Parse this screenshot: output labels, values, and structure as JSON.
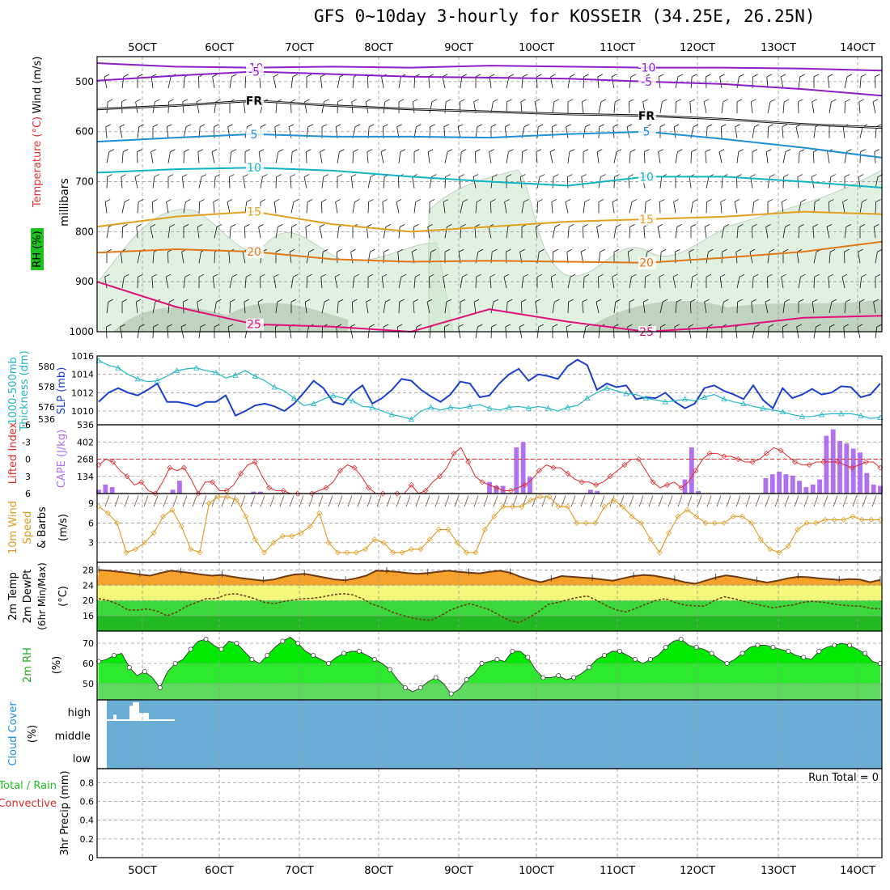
{
  "title": "GFS 0~10day 3-hourly for KOSSEIR (34.25E, 26.25N)",
  "colors": {
    "frame": "#000000",
    "grid": "#9a9a9a",
    "purple": "#8b1fc4",
    "blue": "#1e90d6",
    "cyan": "#10b5c4",
    "orange": "#e0a020",
    "dkorange": "#e07818",
    "magenta": "#e0107a",
    "freezing": "#000000",
    "rh_green": "#c9e6c9",
    "slp": "#1a3fcf",
    "thickness": "#20b6c4",
    "cape": "#b070f0",
    "li": "#dd2b2b",
    "wind10": "#e09a20",
    "barb": "#7b5a40",
    "temp_fill": "#f4a22c",
    "temp_line": "#6e3a12",
    "dew_line": "#6e3a12",
    "band_yellow": "#f4f87a",
    "band_green": "#3ad83a",
    "band_dkgreen": "#22b922",
    "rh2m_fill": "#00ea00",
    "rh2m_fill2": "#52e652",
    "rh2m_fill3": "#7ed07e",
    "cloud_bg": "#6aaed6",
    "cloud_bar": "#ffffff",
    "precip": "#000000"
  },
  "chart_data": [
    {
      "id": "date-axis",
      "type": "axis",
      "tick_labels": [
        "5OCT",
        "6OCT",
        "7OCT",
        "8OCT",
        "9OCT",
        "10OCT",
        "11OCT",
        "12OCT",
        "13OCT",
        "14OCT"
      ],
      "steps": 80
    },
    {
      "id": "upper-air",
      "type": "line",
      "ylabel_parts": [
        "Wind (m/s)",
        "Temperature (°C)",
        "RH (%)"
      ],
      "ylabel_side": "millibars",
      "y_ticks": [
        500,
        600,
        700,
        800,
        900,
        1000
      ],
      "ylim": [
        1000,
        450
      ],
      "isotherms": [
        {
          "label": "-10",
          "color": "purple",
          "x": [
            0,
            8,
            16,
            24,
            32,
            40,
            48,
            56,
            64,
            72,
            80
          ],
          "p": [
            463,
            470,
            472,
            470,
            472,
            468,
            470,
            472,
            472,
            474,
            478
          ]
        },
        {
          "label": "-5",
          "color": "purple",
          "x": [
            0,
            8,
            16,
            24,
            32,
            40,
            48,
            56,
            64,
            72,
            80
          ],
          "p": [
            498,
            488,
            480,
            485,
            490,
            492,
            494,
            500,
            505,
            515,
            528
          ]
        },
        {
          "label": "FR",
          "color": "freezing",
          "x": [
            0,
            8,
            16,
            24,
            32,
            40,
            48,
            56,
            64,
            72,
            80
          ],
          "p": [
            555,
            548,
            538,
            548,
            555,
            560,
            565,
            568,
            575,
            585,
            592
          ]
        },
        {
          "label": "5",
          "color": "blue",
          "x": [
            0,
            8,
            16,
            24,
            32,
            40,
            48,
            56,
            64,
            72,
            80
          ],
          "p": [
            620,
            612,
            605,
            610,
            610,
            612,
            605,
            600,
            615,
            632,
            652
          ]
        },
        {
          "label": "10",
          "color": "cyan",
          "x": [
            0,
            8,
            16,
            24,
            32,
            40,
            48,
            56,
            64,
            72,
            80
          ],
          "p": [
            682,
            675,
            672,
            678,
            690,
            700,
            708,
            690,
            690,
            700,
            712
          ]
        },
        {
          "label": "15",
          "color": "orange",
          "x": [
            0,
            8,
            16,
            24,
            32,
            40,
            48,
            56,
            64,
            72,
            80
          ],
          "p": [
            790,
            770,
            760,
            785,
            800,
            790,
            780,
            775,
            770,
            760,
            765
          ]
        },
        {
          "label": "20",
          "color": "dkorange",
          "x": [
            0,
            8,
            16,
            24,
            32,
            40,
            48,
            56,
            64,
            72,
            80
          ],
          "p": [
            842,
            835,
            840,
            855,
            860,
            858,
            860,
            862,
            852,
            840,
            820
          ]
        },
        {
          "label": "25",
          "color": "magenta",
          "x": [
            0,
            8,
            16,
            24,
            32,
            40,
            48,
            56,
            64,
            72,
            80
          ],
          "p": [
            900,
            950,
            985,
            990,
            1000,
            955,
            980,
            1000,
            990,
            972,
            968
          ]
        }
      ],
      "wind_barbs": {
        "rows": [
          500,
          550,
          600,
          650,
          700,
          750,
          800,
          850,
          900,
          950,
          1000
        ],
        "direction_deg": 315
      }
    },
    {
      "id": "slp-thickness",
      "type": "line",
      "ylabel_left": "1000-500mb Thickness (dm)",
      "ylabel_right": "SLP (mb)",
      "left_ticks": [
        576,
        578,
        580
      ],
      "right_ticks": [
        1010,
        1012,
        1014,
        1016
      ],
      "ylim_slp": [
        1008.5,
        1016
      ],
      "series": [
        {
          "name": "SLP (mb)",
          "color": "slp",
          "values": [
            1011,
            1012,
            1012.5,
            1012,
            1011.7,
            1012.3,
            1013,
            1011,
            1011,
            1010.8,
            1010.5,
            1011,
            1011,
            1011.7,
            1009.5,
            1010,
            1010.6,
            1010.8,
            1010.5,
            1010,
            1010.8,
            1012,
            1013.3,
            1012.5,
            1011,
            1010.7,
            1012,
            1012.8,
            1010.8,
            1011.4,
            1012.3,
            1013.5,
            1013.3,
            1012.3,
            1011.6,
            1011,
            1011.8,
            1013.2,
            1013,
            1011.5,
            1011.7,
            1013,
            1014,
            1014.6,
            1013.3,
            1014,
            1013.8,
            1013.5,
            1014.9,
            1015.6,
            1015,
            1012.3,
            1013,
            1012.6,
            1012.8,
            1011.3,
            1011.5,
            1011.4,
            1012,
            1011,
            1010.3,
            1010.8,
            1012.5,
            1012.8,
            1012.2,
            1011.8,
            1011.3,
            1012.8,
            1011.2,
            1010.3,
            1012.5,
            1011.4,
            1011.8,
            1012.4,
            1011.8,
            1012,
            1012.7,
            1012.6,
            1011.5,
            1011.8,
            1013
          ]
        },
        {
          "name": "Thickness (dm)",
          "color": "thickness",
          "values": [
            1015.5,
            1015,
            1014.7,
            1014,
            1013.5,
            1013.2,
            1013.3,
            1013.8,
            1014.4,
            1014.6,
            1014.7,
            1014.4,
            1014.2,
            1013.6,
            1013.9,
            1014.4,
            1013.8,
            1013.3,
            1012.6,
            1012.2,
            1011.4,
            1010.6,
            1010.8,
            1011.3,
            1011.7,
            1011.4,
            1011.1,
            1010.5,
            1010.4,
            1010,
            1009.6,
            1009.4,
            1009.1,
            1010,
            1010.4,
            1010.1,
            1010.4,
            1010.3,
            1010.5,
            1010.7,
            1010.3,
            1010.1,
            1010.4,
            1010.5,
            1010.3,
            1010.5,
            1010.3,
            1010,
            1010.4,
            1010.6,
            1011.4,
            1012,
            1012.5,
            1012.2,
            1011.9,
            1011.8,
            1011.4,
            1011.2,
            1011,
            1011.1,
            1011.3,
            1011.1,
            1011.5,
            1011.8,
            1011.3,
            1011,
            1010.8,
            1010.5,
            1010.3,
            1010.1,
            1009.9,
            1009.6,
            1009.4,
            1009.4,
            1009.6,
            1009.7,
            1009.7,
            1009.7,
            1009.5,
            1009.2,
            1009.3
          ]
        }
      ]
    },
    {
      "id": "cape-li",
      "type": "bar",
      "ylabel_left": "Lifted Index",
      "ylabel_right": "CAPE (J/kg)",
      "li_ticks": [
        "-6",
        "-3",
        "0",
        "3",
        "6"
      ],
      "cape_ticks": [
        536,
        402,
        268,
        134
      ],
      "cape_max": 536,
      "cape_values": [
        30,
        70,
        50,
        0,
        0,
        0,
        0,
        0,
        0,
        0,
        0,
        30,
        100,
        0,
        0,
        0,
        0,
        0,
        0,
        0,
        0,
        0,
        0,
        15,
        15,
        0,
        0,
        0,
        0,
        0,
        0,
        0,
        0,
        0,
        0,
        0,
        0,
        0,
        0,
        0,
        0,
        0,
        0,
        0,
        0,
        0,
        0,
        0,
        0,
        0,
        0,
        0,
        0,
        0,
        0,
        0,
        0,
        0,
        90,
        60,
        60,
        0,
        360,
        400,
        130,
        0,
        0,
        0,
        0,
        0,
        0,
        0,
        0,
        30,
        20,
        0,
        0,
        0,
        0,
        0,
        0,
        0,
        0,
        0,
        0,
        0,
        0,
        110,
        360,
        20,
        0,
        0,
        0,
        0,
        0,
        0,
        0,
        0,
        0,
        120,
        150,
        170,
        150,
        140,
        100,
        50,
        70,
        110,
        450,
        500,
        410,
        390,
        350,
        320,
        160,
        70,
        60
      ],
      "li_values": [
        1,
        0,
        0.5,
        2,
        3,
        4.5,
        4,
        5.5,
        6,
        4,
        1.5,
        2,
        1.5,
        3.5,
        6,
        4,
        4,
        5.5,
        5.5,
        4.5,
        2.5,
        1,
        0.5,
        3,
        5,
        5.5,
        5.5,
        6,
        6,
        6,
        6,
        5.5,
        5,
        4,
        2,
        1,
        1.5,
        3,
        5,
        6,
        6,
        6.5,
        7,
        6,
        4.5,
        6,
        5.5,
        4,
        3,
        1.5,
        -1,
        -2,
        0.5,
        3,
        4,
        4.5,
        5,
        5.5,
        5.5,
        5,
        4.5,
        3.5,
        2,
        1,
        1.5,
        1.5,
        2.5,
        3.5,
        4,
        4,
        4.5,
        4,
        3,
        2,
        1,
        0,
        0,
        2,
        4,
        5,
        4.5,
        4,
        5,
        4,
        2,
        0,
        -1,
        -1,
        -0.5,
        -0.5,
        0,
        0.5,
        0.5,
        0,
        -1,
        -2,
        -1.5,
        -0.5,
        0.5,
        1,
        1,
        0.5,
        0.5,
        0.5,
        0.5,
        1,
        1.5,
        1,
        0.5,
        0.5,
        1.5
      ],
      "li_ref_line": 0
    },
    {
      "id": "wind10m",
      "type": "line",
      "ylabel": "10m Wind Speed & Barbs (m/s)",
      "y_ticks": [
        3,
        6,
        9
      ],
      "ylim": [
        0,
        10.5
      ],
      "values": [
        8.5,
        7.5,
        6,
        1.5,
        2,
        3,
        4.5,
        7,
        8,
        5.5,
        2,
        1.5,
        9,
        10,
        10,
        9.5,
        7,
        3.5,
        1.5,
        3,
        4,
        4,
        4.5,
        5.5,
        7.5,
        3,
        1.5,
        1.5,
        1.5,
        2,
        3.5,
        3,
        1.5,
        1.5,
        2,
        2,
        3.5,
        5,
        5,
        3,
        1.5,
        1.5,
        5,
        7,
        8.5,
        8.5,
        8.5,
        9.5,
        10,
        10,
        8.5,
        8.5,
        6,
        6,
        6,
        8.5,
        9.5,
        8.5,
        7,
        6,
        3.5,
        1.5,
        4.5,
        7,
        8,
        7,
        6,
        6,
        6,
        7,
        7,
        6,
        3.5,
        2,
        1.5,
        2.5,
        5,
        6,
        6,
        6.5,
        6.5,
        6.5,
        7,
        6.5,
        6.5,
        6.5
      ]
    },
    {
      "id": "temp-dew",
      "type": "area",
      "ylabel": "2m Temp 2m DewPt (6hr Min/Max) (°C)",
      "y_ticks": [
        16,
        20,
        24,
        28
      ],
      "ylim": [
        12,
        30
      ],
      "temp_values": [
        28,
        27.8,
        27.5,
        27.2,
        26.8,
        26.5,
        27.2,
        27.8,
        27.5,
        27.2,
        26.8,
        26.5,
        26.7,
        26.2,
        25.8,
        25.5,
        25.2,
        25.5,
        26.2,
        26.8,
        27,
        26.5,
        26,
        25.5,
        25.3,
        25.8,
        26.5,
        27.8,
        27.7,
        27.5,
        27.2,
        27,
        27.2,
        27.5,
        27.8,
        27.5,
        27.3,
        27.1,
        27.5,
        27.8,
        27.3,
        26.2,
        25.4,
        24.8,
        25.6,
        26.4,
        26.2,
        26,
        25.8,
        25.5,
        25.2,
        25.8,
        26.4,
        26.7,
        26.5,
        26,
        25.5,
        24.8,
        24.4,
        25.2,
        26,
        26.6,
        26.2,
        25.7,
        25.2,
        24.7,
        25.2,
        25.8,
        26.2,
        26.1,
        25.8,
        25.6,
        25.4,
        25.6,
        25.5,
        24.8,
        25.4
      ],
      "dew_values": [
        20.5,
        20,
        19,
        17.5,
        17.5,
        17.8,
        17.2,
        16,
        17,
        18.5,
        19.5,
        20.5,
        20.5,
        21.5,
        21.8,
        21.2,
        20.5,
        19.5,
        19.2,
        19.8,
        20.2,
        20.5,
        20.6,
        21,
        21.5,
        21.8,
        21.5,
        20.5,
        19,
        18.2,
        17,
        16.2,
        15.5,
        15,
        14.8,
        16,
        17.5,
        18.5,
        19.2,
        18.4,
        17.6,
        16.2,
        14.8,
        14.2,
        15.5,
        17,
        19,
        19.5,
        20.2,
        20.8,
        21.2,
        20,
        18.6,
        17.5,
        17,
        18,
        19,
        20,
        20.5,
        19.5,
        18.8,
        18.6,
        18.5,
        20,
        21,
        20.5,
        19.8,
        19.2,
        18.6,
        18.1,
        18.5,
        18.8,
        19.5,
        19.8,
        19.6,
        19.2,
        18.8,
        18.6,
        18.5,
        18,
        17.8
      ]
    },
    {
      "id": "rh2m",
      "type": "area",
      "ylabel": "2m RH (%)",
      "y_ticks": [
        50,
        60,
        70
      ],
      "ylim": [
        42,
        76
      ],
      "values": [
        61,
        62,
        64,
        65,
        58,
        54,
        56,
        53,
        48,
        56,
        60,
        62,
        67,
        71,
        72,
        69,
        67,
        71,
        70,
        66,
        62,
        60,
        64,
        68,
        71,
        73,
        70,
        66,
        64,
        62,
        60,
        63,
        65,
        66,
        66,
        64,
        62,
        60,
        57,
        52,
        48,
        46,
        48,
        51,
        53,
        50,
        45,
        47,
        52,
        55,
        60,
        61,
        62,
        61,
        66,
        66,
        63,
        57,
        53,
        53,
        54,
        52,
        53,
        55,
        58,
        62,
        64,
        66,
        66,
        64,
        62,
        60,
        62,
        64,
        68,
        71,
        72,
        69,
        68,
        67,
        65,
        62,
        60,
        62,
        65,
        68,
        69,
        69,
        68,
        67,
        66,
        64,
        63,
        62,
        66,
        68,
        69,
        70,
        69,
        67,
        65,
        61,
        60
      ]
    },
    {
      "id": "cloud",
      "type": "bar",
      "ylabel": "Cloud Cover (%)",
      "level_labels": [
        "high",
        "middle",
        "low"
      ],
      "high_values": [
        0,
        0,
        30,
        0,
        0,
        0,
        0,
        80,
        100,
        100,
        40,
        40,
        40,
        0,
        0,
        0,
        0,
        0,
        0,
        0,
        0
      ]
    },
    {
      "id": "precip",
      "type": "bar",
      "ylabel_left": "3hr Precip (mm)",
      "legend_total": "Total / Rain",
      "legend_conv": "Convective",
      "y_ticks": [
        "0",
        "0.2",
        "0.4",
        "0.6",
        "0.8"
      ],
      "ylim": [
        0,
        0.95
      ],
      "run_total_label": "Run Total = 0",
      "values": []
    }
  ]
}
